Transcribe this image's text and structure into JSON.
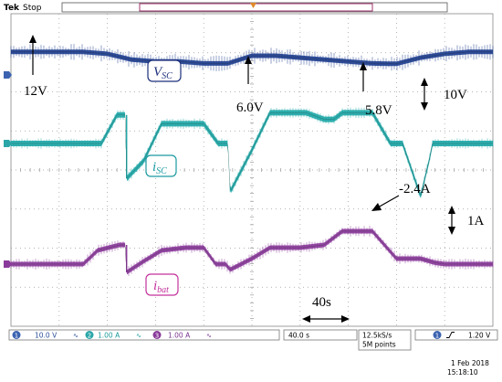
{
  "header": {
    "brand": "Tek",
    "status": "Stop"
  },
  "footer": {
    "ch1": {
      "num": "1",
      "scale": "10.0 V"
    },
    "ch2": {
      "num": "2",
      "scale": "1.00 A"
    },
    "ch3": {
      "num": "3",
      "scale": "1.00 A"
    },
    "timebase": "40.0 s",
    "sample_rate": "12.5kS/s",
    "record_length": "5M points",
    "trigger": {
      "num": "1",
      "level": "1.20 V"
    },
    "date": "1 Feb 2018",
    "time": "15:18:10"
  },
  "annotations": {
    "label_vsc": {
      "main": "V",
      "sub": "SC"
    },
    "label_isc": {
      "main": "i",
      "sub": "SC"
    },
    "label_ibat": {
      "main": "i",
      "sub": "bat"
    },
    "v12": "12V",
    "v60": "6.0V",
    "v58": "5.8V",
    "volt_scale": "10V",
    "amp_scale": "1A",
    "neg_current": "-2.4A",
    "time_scale": "40s"
  },
  "colors": {
    "vsc": "#1f3f8f",
    "isc": "#1fa7a7",
    "ibat": "#8a3a9a",
    "vsc_box": "#1c2f7a",
    "isc_box": "#1a9aa0",
    "ibat_box": "#c3329c",
    "grid": "#9a9a9a",
    "marker_ch1": "#3b63b0",
    "marker_ch2": "#2aa6a8",
    "marker_ch3": "#8a3a9a",
    "trigger": "#e08a2a"
  },
  "chart_data": {
    "type": "line",
    "title": "",
    "xlabel": "",
    "ylabel": "",
    "x_unit": "s",
    "x_div": 40,
    "xlim": [
      0,
      400
    ],
    "grid": true,
    "series": [
      {
        "name": "V_SC",
        "unit": "V",
        "x": [
          0,
          20,
          40,
          60,
          80,
          100,
          120,
          140,
          160,
          180,
          200,
          220,
          240,
          260,
          280,
          300,
          320,
          340,
          360,
          380,
          400
        ],
        "values": [
          12,
          12,
          12,
          12,
          11,
          8,
          7,
          7,
          6,
          6,
          10,
          10,
          9,
          8,
          7,
          6,
          5.8,
          9,
          11,
          12,
          12
        ]
      },
      {
        "name": "i_SC",
        "unit": "A",
        "x": [
          0,
          60,
          75,
          88,
          95,
          96,
          110,
          125,
          145,
          160,
          172,
          180,
          182,
          200,
          215,
          245,
          260,
          268,
          275,
          300,
          315,
          325,
          340,
          347,
          350,
          380,
          400
        ],
        "values": [
          0,
          0,
          0,
          1.3,
          1.3,
          -1.6,
          -0.8,
          0.9,
          0.9,
          0.9,
          0,
          0,
          -2.2,
          -0.3,
          1.4,
          1.4,
          1.1,
          1.1,
          1.4,
          1.4,
          0,
          0,
          -2.4,
          -0.8,
          0,
          0,
          0
        ]
      },
      {
        "name": "i_bat",
        "unit": "A",
        "x": [
          0,
          60,
          72,
          90,
          95,
          96,
          110,
          125,
          145,
          160,
          170,
          178,
          182,
          200,
          215,
          240,
          260,
          275,
          300,
          320,
          340,
          352,
          360,
          380,
          400
        ],
        "values": [
          0,
          0,
          0.5,
          0.7,
          0.7,
          -0.3,
          0.1,
          0.5,
          0.6,
          0.6,
          0,
          0,
          -0.2,
          0.2,
          0.6,
          0.6,
          0.7,
          1.2,
          1.2,
          0.2,
          0.2,
          0.05,
          0,
          0,
          0
        ]
      }
    ]
  }
}
